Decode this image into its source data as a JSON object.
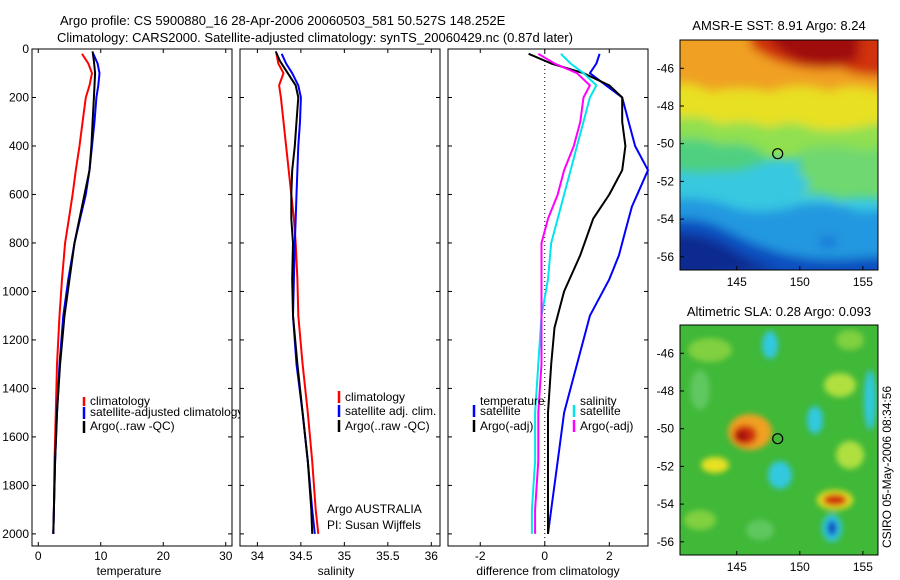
{
  "figure": {
    "title_line1": "Argo profile: CS 5900880_16 28-Apr-2006 20060503_581 50.527S 148.252E",
    "title_line2": "Climatology: CARS2000. Satellite-adjusted climatology: synTS_20060429.nc (0.87d later)",
    "credit": "CSIRO 05-May-2006 08:34:56",
    "footer_line1": "Argo AUSTRALIA",
    "footer_line2": "PI: Susan Wijffels"
  },
  "colors": {
    "red": "#ff0000",
    "blue": "#0000ff",
    "black": "#000000",
    "cyan": "#00e5ee",
    "magenta": "#ff00ff",
    "marker": "#000000"
  },
  "chart_data": [
    {
      "type": "line",
      "xlabel": "temperature",
      "ylabel": "",
      "xlim": [
        -1,
        31
      ],
      "ylim": [
        2050,
        0
      ],
      "xticks": [
        "0",
        "10",
        "20",
        "30"
      ],
      "yticks": [
        "0",
        "200",
        "400",
        "600",
        "800",
        "1000",
        "1200",
        "1400",
        "1600",
        "1800",
        "2000"
      ],
      "legend": [
        "climatology",
        "satellite-adjusted climatology",
        "Argo(..raw -QC)"
      ],
      "series": [
        {
          "name": "climatology",
          "color": "red",
          "x": [
            7.0,
            8.0,
            8.6,
            8.2,
            7.6,
            7.1,
            6.6,
            6.0,
            5.5,
            4.9,
            4.3,
            3.8,
            3.4,
            3.0,
            2.8,
            2.6,
            2.5,
            2.4
          ],
          "y": [
            20,
            60,
            100,
            150,
            200,
            300,
            400,
            500,
            600,
            700,
            800,
            950,
            1100,
            1300,
            1500,
            1700,
            1900,
            2000
          ]
        },
        {
          "name": "satellite-adjusted climatology",
          "color": "blue",
          "x": [
            8.8,
            9.5,
            9.8,
            9.6,
            9.3,
            9.0,
            8.6,
            8.2,
            7.6,
            6.7,
            5.8,
            4.8,
            4.0,
            3.4,
            3.0,
            2.7,
            2.5,
            2.4
          ],
          "y": [
            20,
            60,
            100,
            150,
            200,
            300,
            400,
            500,
            600,
            700,
            800,
            950,
            1100,
            1300,
            1500,
            1700,
            1900,
            2000
          ]
        },
        {
          "name": "Argo(..raw -QC)",
          "color": "black",
          "x": [
            8.7,
            8.9,
            9.1,
            9.0,
            8.9,
            8.7,
            8.5,
            8.2,
            7.4,
            6.6,
            5.8,
            5.0,
            4.2,
            3.5,
            3.0,
            2.7,
            2.5,
            2.4
          ],
          "y": [
            10,
            50,
            100,
            150,
            200,
            300,
            400,
            500,
            600,
            700,
            800,
            950,
            1100,
            1300,
            1500,
            1700,
            1900,
            2000
          ]
        }
      ]
    },
    {
      "type": "line",
      "xlabel": "salinity",
      "ylabel": "",
      "xlim": [
        33.8,
        36.1
      ],
      "ylim": [
        2050,
        0
      ],
      "xticks": [
        "34",
        "34.5",
        "35",
        "35.5",
        "36"
      ],
      "yticks": [],
      "legend": [
        "climatology",
        "satellite adj. clim.",
        "Argo(..raw -QC)"
      ],
      "series": [
        {
          "name": "climatology",
          "color": "red",
          "x": [
            34.22,
            34.24,
            34.3,
            34.25,
            34.27,
            34.3,
            34.33,
            34.36,
            34.39,
            34.42,
            34.44,
            34.46,
            34.47,
            34.52,
            34.58,
            34.63,
            34.67,
            34.7
          ],
          "y": [
            20,
            60,
            100,
            150,
            200,
            300,
            400,
            500,
            600,
            700,
            800,
            950,
            1100,
            1300,
            1500,
            1700,
            1900,
            2000
          ]
        },
        {
          "name": "satellite adj. clim.",
          "color": "blue",
          "x": [
            34.28,
            34.33,
            34.4,
            34.47,
            34.5,
            34.49,
            34.47,
            34.46,
            34.45,
            34.44,
            34.43,
            34.42,
            34.41,
            34.45,
            34.52,
            34.58,
            34.63,
            34.66
          ],
          "y": [
            20,
            60,
            100,
            150,
            200,
            300,
            400,
            500,
            600,
            700,
            800,
            950,
            1100,
            1300,
            1500,
            1700,
            1900,
            2000
          ]
        },
        {
          "name": "Argo(..raw -QC)",
          "color": "black",
          "x": [
            34.21,
            34.26,
            34.35,
            34.44,
            34.47,
            34.45,
            34.43,
            34.4,
            34.39,
            34.39,
            34.41,
            34.4,
            34.41,
            34.46,
            34.52,
            34.58,
            34.62,
            34.63
          ],
          "y": [
            10,
            50,
            100,
            150,
            200,
            300,
            400,
            500,
            600,
            700,
            800,
            950,
            1100,
            1300,
            1500,
            1700,
            1900,
            2000
          ]
        }
      ]
    },
    {
      "type": "line",
      "xlabel": "difference from climatology",
      "ylabel": "",
      "xlim": [
        -3,
        3.2
      ],
      "ylim": [
        2050,
        0
      ],
      "xticks": [
        "-2",
        "0",
        "2"
      ],
      "yticks": [],
      "legend_titles": [
        "temperature",
        "salinity"
      ],
      "legend": [
        "satellite",
        "Argo(-adj)",
        "satellite",
        "Argo(-adj)"
      ],
      "series": [
        {
          "name": "temperature satellite",
          "color": "blue",
          "x": [
            1.7,
            1.6,
            1.4,
            1.9,
            2.4,
            2.6,
            2.8,
            3.2,
            2.7,
            2.5,
            2.3,
            2.0,
            1.4,
            1.0,
            0.6,
            0.4,
            0.2,
            0.1
          ],
          "y": [
            20,
            60,
            100,
            150,
            200,
            300,
            400,
            500,
            650,
            750,
            850,
            950,
            1100,
            1300,
            1500,
            1700,
            1900,
            2000
          ]
        },
        {
          "name": "temperature Argo(-adj)",
          "color": "black",
          "x": [
            -0.5,
            0.2,
            1.2,
            2.0,
            2.4,
            2.4,
            2.5,
            2.4,
            2.0,
            1.5,
            1.1,
            0.6,
            0.3,
            0.2,
            0.1,
            0.1,
            0.1,
            0.1
          ],
          "y": [
            20,
            60,
            100,
            150,
            200,
            300,
            400,
            500,
            600,
            700,
            850,
            1000,
            1150,
            1300,
            1500,
            1700,
            1900,
            2000
          ]
        },
        {
          "name": "salinity satellite",
          "color": "cyan",
          "x": [
            0.5,
            0.8,
            1.2,
            1.6,
            1.4,
            1.2,
            1.0,
            0.8,
            0.6,
            0.4,
            0.2,
            0.1,
            -0.1,
            -0.2,
            -0.3,
            -0.3,
            -0.4,
            -0.4
          ],
          "y": [
            20,
            60,
            100,
            150,
            200,
            300,
            400,
            500,
            600,
            700,
            800,
            950,
            1100,
            1300,
            1500,
            1700,
            1900,
            2000
          ]
        },
        {
          "name": "salinity Argo(-adj)",
          "color": "magenta",
          "x": [
            -0.2,
            0.3,
            1.0,
            1.4,
            1.2,
            1.1,
            0.9,
            0.6,
            0.4,
            0.1,
            -0.1,
            -0.1,
            -0.1,
            -0.1,
            -0.2,
            -0.2,
            -0.3,
            -0.3
          ],
          "y": [
            20,
            60,
            100,
            150,
            200,
            300,
            400,
            500,
            600,
            700,
            800,
            950,
            1100,
            1300,
            1500,
            1700,
            1900,
            2000
          ]
        }
      ]
    },
    {
      "type": "heatmap",
      "title": "AMSR-E SST: 8.91  Argo: 8.24",
      "xticks": [
        "145",
        "150",
        "155"
      ],
      "yticks": [
        "-46",
        "-48",
        "-50",
        "-52",
        "-54",
        "-56"
      ],
      "xlim": [
        140.5,
        156.2
      ],
      "ylim": [
        -56.7,
        -44.5
      ],
      "marker": {
        "lon": 148.25,
        "lat": -50.53
      }
    },
    {
      "type": "heatmap",
      "title": "Altimetric SLA: 0.28  Argo: 0.093",
      "xticks": [
        "145",
        "150",
        "155"
      ],
      "yticks": [
        "-46",
        "-48",
        "-50",
        "-52",
        "-54",
        "-56"
      ],
      "xlim": [
        140.5,
        156.2
      ],
      "ylim": [
        -56.7,
        -44.5
      ],
      "marker": {
        "lon": 148.25,
        "lat": -50.53
      }
    }
  ]
}
